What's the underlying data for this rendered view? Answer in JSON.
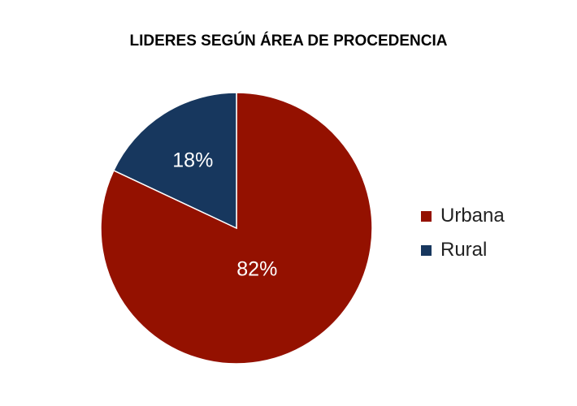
{
  "chart_data": {
    "type": "pie",
    "title": "LIDERES SEGÚN ÁREA DE PROCEDENCIA",
    "categories": [
      "Urbana",
      "Rural"
    ],
    "values": [
      82,
      18
    ],
    "labels": [
      "82%",
      "18%"
    ],
    "colors": [
      "#941100",
      "#17375E"
    ],
    "legend": "right"
  }
}
